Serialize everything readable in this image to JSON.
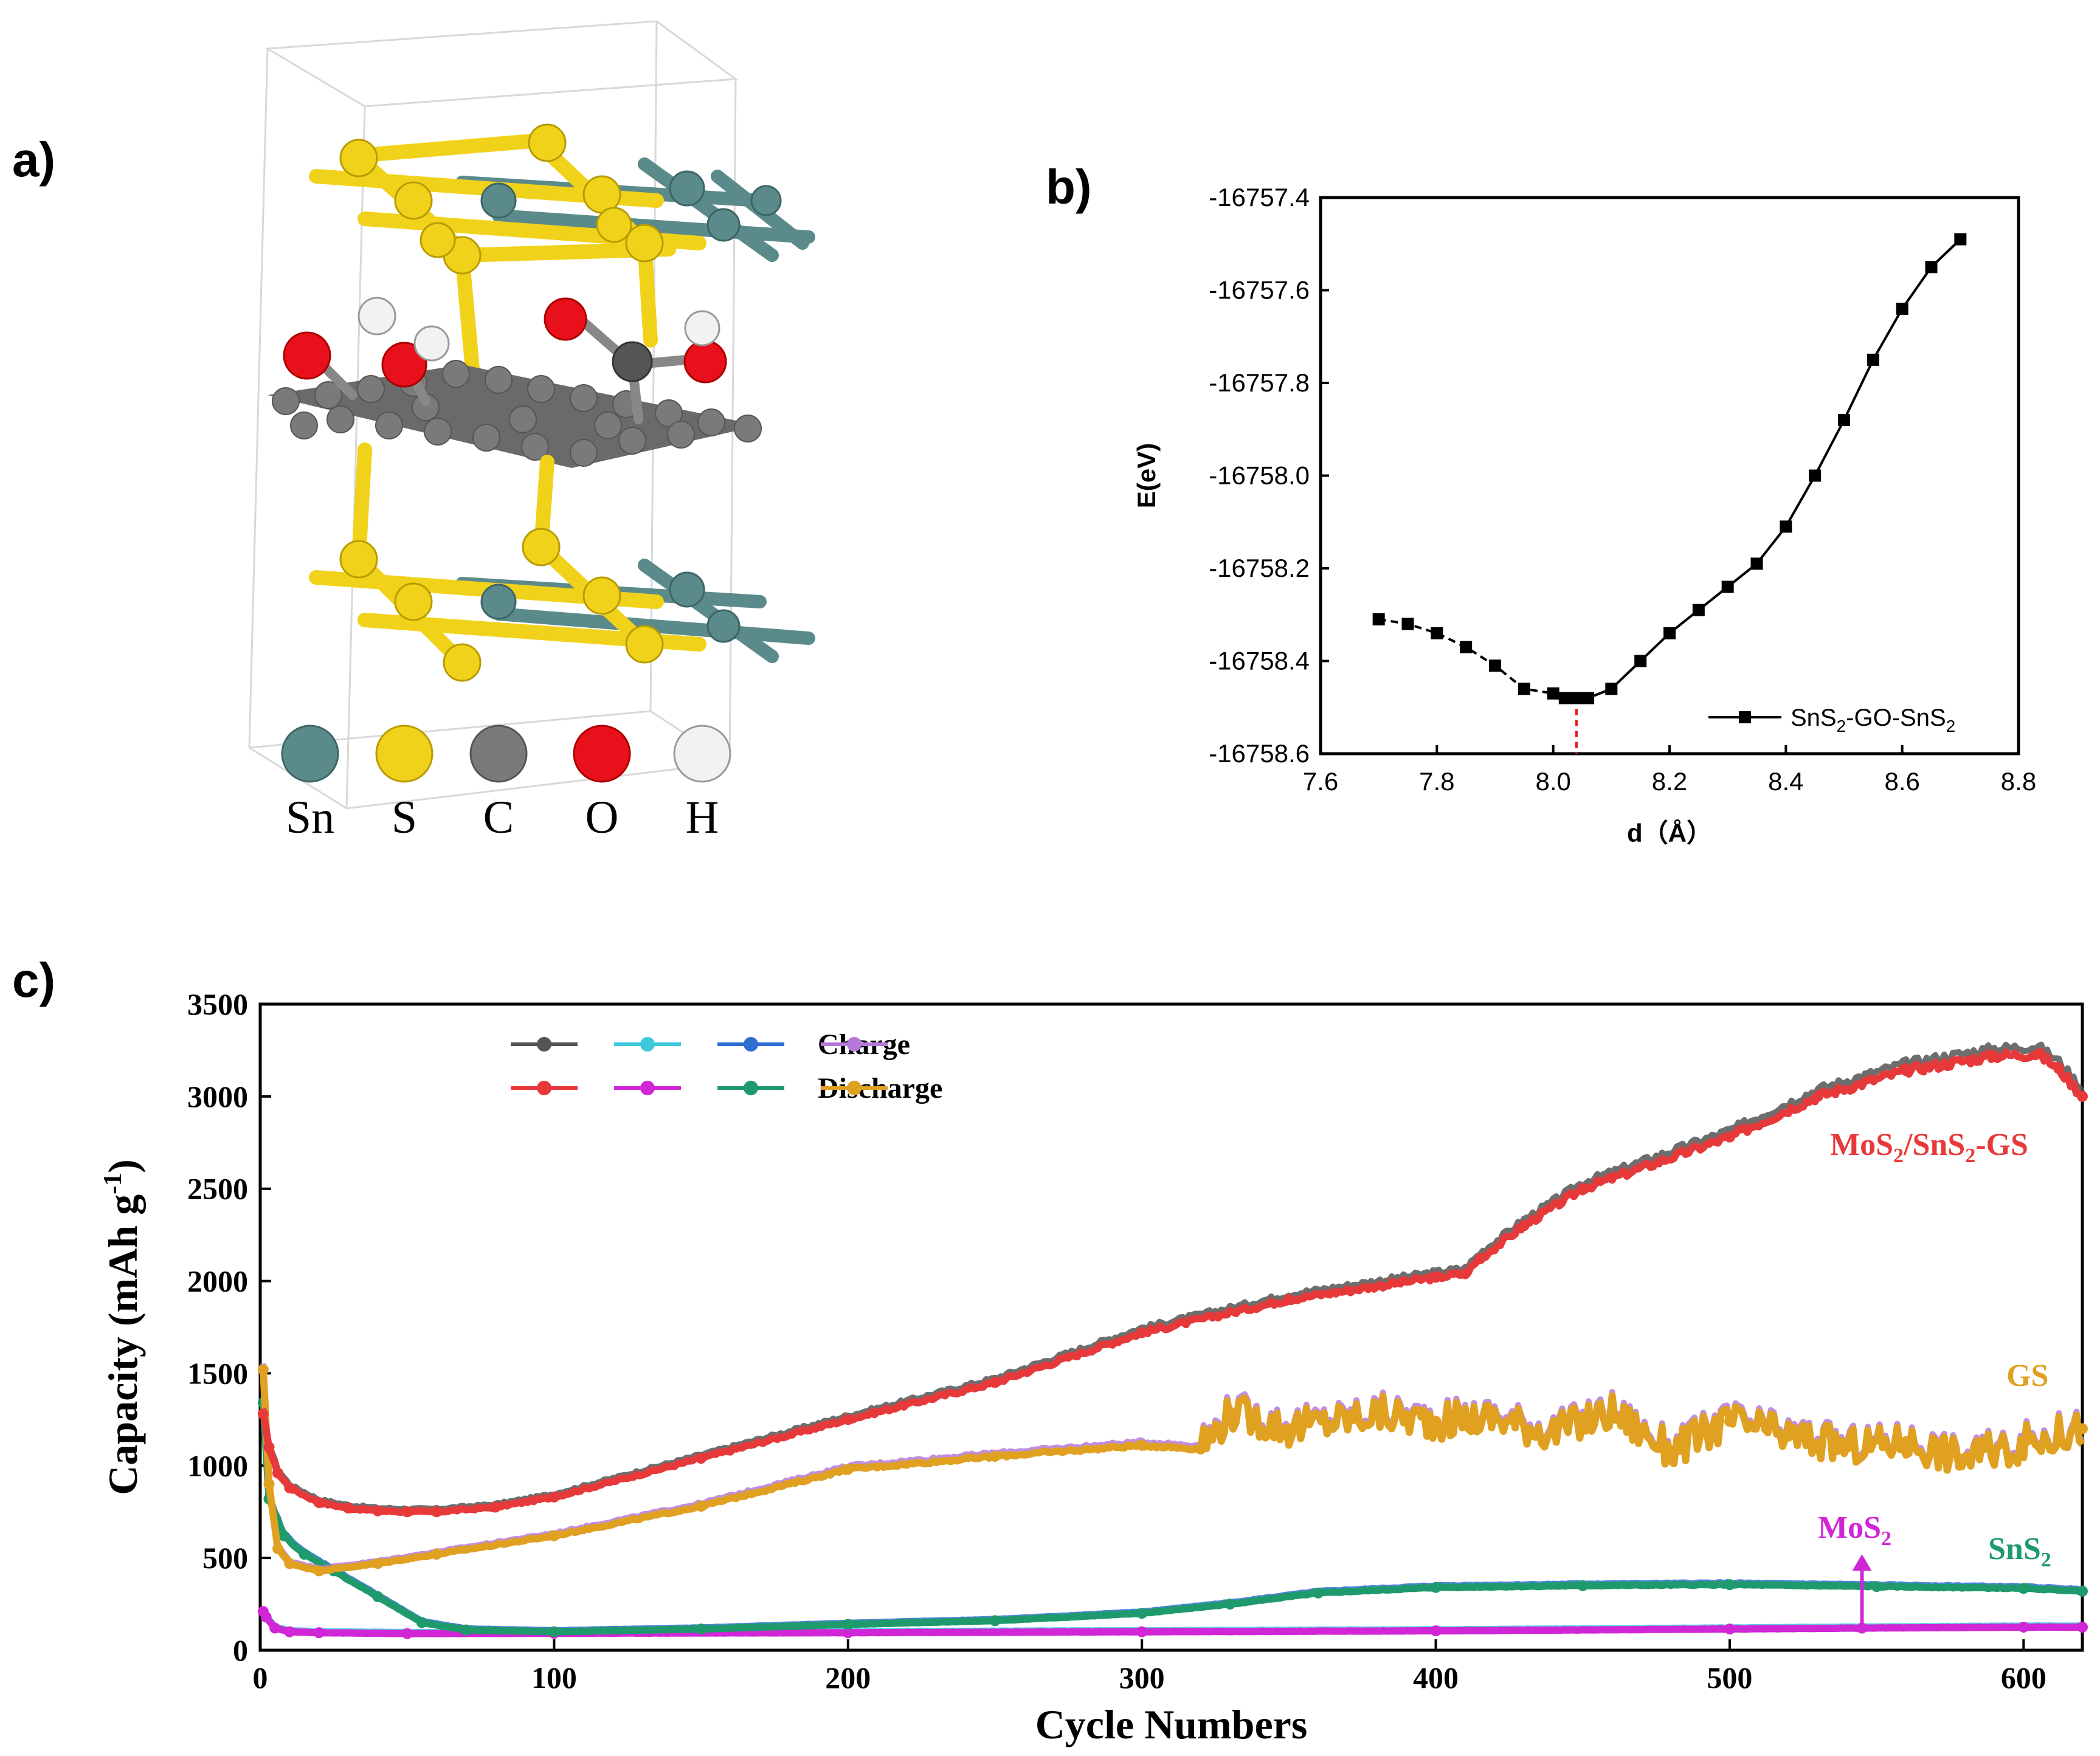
{
  "panels": {
    "a": "a)",
    "b": "b)",
    "c": "c)"
  },
  "structure": {
    "legend": [
      {
        "label": "Sn",
        "color": "#5b8a8a"
      },
      {
        "label": "S",
        "color": "#f0d21a"
      },
      {
        "label": "C",
        "color": "#7a7a7a"
      },
      {
        "label": "O",
        "color": "#e8101a"
      },
      {
        "label": "H",
        "color": "#f2f2f2"
      }
    ]
  },
  "chart_data": [
    {
      "id": "b",
      "type": "line",
      "xlabel": "d（Å）",
      "ylabel": "E(eV)",
      "xlim": [
        7.6,
        8.8
      ],
      "ylim": [
        -16758.6,
        -16757.4
      ],
      "xticks": [
        "7.6",
        "7.8",
        "8.0",
        "8.2",
        "8.4",
        "8.6",
        "8.8"
      ],
      "yticks": [
        "-16757.4",
        "-16757.6",
        "-16757.8",
        "-16758.0",
        "-16758.2",
        "-16758.4",
        "-16758.6"
      ],
      "series": [
        {
          "name": "SnS2-GO-SnS2",
          "legend_main": "SnS",
          "legend_sub1": "2",
          "legend_mid": "-GO-SnS",
          "legend_sub2": "2",
          "x": [
            7.7,
            7.75,
            7.8,
            7.85,
            7.9,
            7.95,
            8.0,
            8.02,
            8.04,
            8.06,
            8.1,
            8.15,
            8.2,
            8.25,
            8.3,
            8.35,
            8.4,
            8.45,
            8.5,
            8.55,
            8.6,
            8.65,
            8.7
          ],
          "y": [
            -16758.31,
            -16758.32,
            -16758.34,
            -16758.37,
            -16758.41,
            -16758.46,
            -16758.47,
            -16758.48,
            -16758.48,
            -16758.48,
            -16758.46,
            -16758.4,
            -16758.34,
            -16758.29,
            -16758.24,
            -16758.19,
            -16758.11,
            -16758.0,
            -16757.88,
            -16757.75,
            -16757.64,
            -16757.55,
            -16757.49
          ]
        }
      ],
      "minimum_marker_x": 8.04
    },
    {
      "id": "c",
      "type": "scatter",
      "xlabel": "Cycle Numbers",
      "ylabel_main": "Capacity (mAh g",
      "ylabel_sup": "-1",
      "ylabel_end": ")",
      "xlim": [
        0,
        620
      ],
      "ylim": [
        0,
        3500
      ],
      "xticks": [
        "0",
        "100",
        "200",
        "300",
        "400",
        "500",
        "600"
      ],
      "yticks": [
        "0",
        "500",
        "1000",
        "1500",
        "2000",
        "2500",
        "3000",
        "3500"
      ],
      "legend": {
        "charge_label": "Charge",
        "discharge_label": "Discharge",
        "charge_colors": [
          "#555555",
          "#3ec8dd",
          "#2f6fd1",
          "#b57ad9"
        ],
        "discharge_colors": [
          "#e8393a",
          "#d026d6",
          "#1e9a6c",
          "#e0a020"
        ]
      },
      "series": [
        {
          "name": "MoS2/SnS2-GS",
          "color": "#e8393a",
          "charge_color": "#555555",
          "x": [
            1,
            3,
            6,
            10,
            20,
            30,
            40,
            50,
            60,
            80,
            100,
            150,
            200,
            250,
            300,
            350,
            400,
            410,
            415,
            430,
            450,
            500,
            530,
            560,
            590,
            605,
            612,
            620
          ],
          "y": [
            1280,
            1100,
            960,
            880,
            800,
            770,
            755,
            750,
            750,
            775,
            830,
            1040,
            1250,
            1450,
            1720,
            1900,
            2020,
            2040,
            2120,
            2300,
            2500,
            2780,
            3000,
            3140,
            3220,
            3230,
            3150,
            3000
          ]
        },
        {
          "name": "GS",
          "color": "#e0a020",
          "charge_color": "#b57ad9",
          "x": [
            1,
            3,
            6,
            10,
            20,
            40,
            60,
            100,
            150,
            200,
            250,
            300,
            320,
            330,
            350,
            380,
            400,
            420,
            440,
            460,
            480,
            500,
            520,
            540,
            560,
            580,
            600,
            620
          ],
          "y": [
            1520,
            900,
            550,
            470,
            430,
            470,
            520,
            620,
            780,
            980,
            1050,
            1110,
            1090,
            1290,
            1200,
            1280,
            1240,
            1260,
            1180,
            1290,
            1080,
            1240,
            1160,
            1100,
            1130,
            1040,
            1120,
            1200
          ]
        },
        {
          "name": "SnS2",
          "color": "#1e9a6c",
          "charge_color": "#2f6fd1",
          "x": [
            1,
            3,
            8,
            15,
            25,
            40,
            55,
            70,
            100,
            150,
            200,
            250,
            300,
            330,
            360,
            400,
            450,
            500,
            550,
            600,
            620
          ],
          "y": [
            1340,
            820,
            620,
            520,
            430,
            290,
            150,
            110,
            100,
            115,
            140,
            160,
            200,
            250,
            310,
            340,
            350,
            355,
            345,
            335,
            320
          ]
        },
        {
          "name": "MoS2",
          "color": "#d026d6",
          "charge_color": "#3ec8dd",
          "x": [
            1,
            2,
            5,
            10,
            20,
            50,
            100,
            200,
            300,
            400,
            500,
            545,
            600,
            620
          ],
          "y": [
            210,
            180,
            120,
            100,
            95,
            90,
            92,
            95,
            100,
            105,
            115,
            120,
            125,
            125
          ]
        }
      ],
      "annotations": {
        "mos2_sngs": {
          "main": "MoS",
          "s1": "2",
          "mid": "/SnS",
          "s2": "2",
          "end": "-GS",
          "color": "#e8393a"
        },
        "gs": {
          "main": "GS",
          "color": "#e0a020"
        },
        "mos2": {
          "main": "MoS",
          "s1": "2",
          "color": "#d026d6"
        },
        "sns2": {
          "main": "SnS",
          "s1": "2",
          "color": "#1e9a6c"
        }
      },
      "arrow_x": 545
    }
  ]
}
